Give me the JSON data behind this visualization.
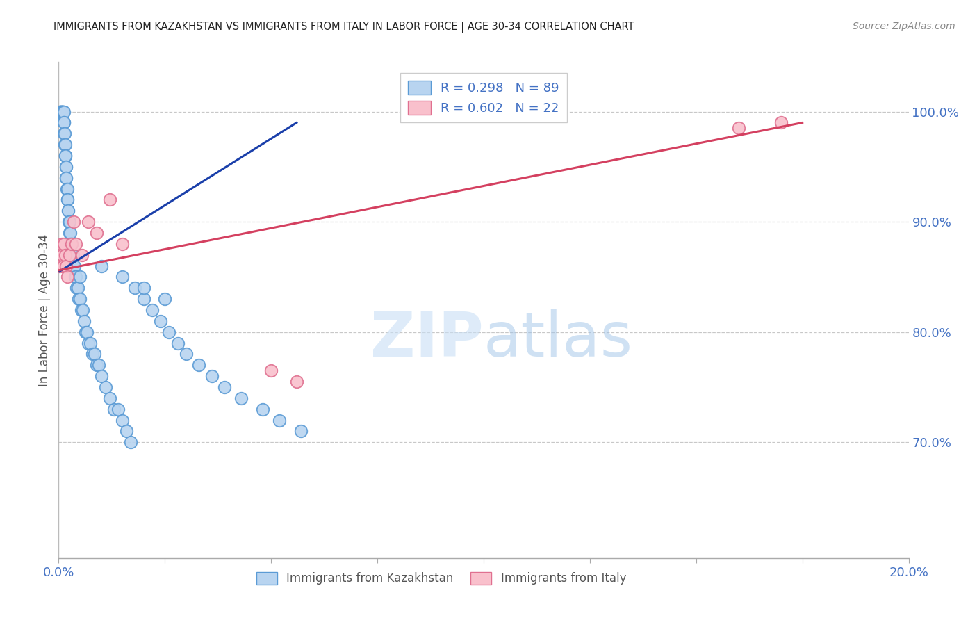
{
  "title": "IMMIGRANTS FROM KAZAKHSTAN VS IMMIGRANTS FROM ITALY IN LABOR FORCE | AGE 30-34 CORRELATION CHART",
  "source": "Source: ZipAtlas.com",
  "ylabel": "In Labor Force | Age 30-34",
  "title_color": "#222222",
  "source_color": "#888888",
  "ylabel_color": "#555555",
  "right_axis_color": "#4472c4",
  "grid_color": "#c8c8c8",
  "blue_scatter_color": "#b8d4f0",
  "blue_scatter_edge": "#5b9bd5",
  "pink_scatter_color": "#f9c0cc",
  "pink_scatter_edge": "#e07090",
  "blue_line_color": "#1a3faa",
  "pink_line_color": "#d44060",
  "blue_line_dash": [
    6,
    4
  ],
  "xlim": [
    0.0,
    0.2
  ],
  "ylim": [
    0.595,
    1.045
  ],
  "yticks_right": [
    0.7,
    0.8,
    0.9,
    1.0
  ],
  "ytick_labels_right": [
    "70.0%",
    "80.0%",
    "90.0%",
    "100.0%"
  ],
  "xticks": [
    0.0,
    0.025,
    0.05,
    0.075,
    0.1,
    0.125,
    0.15,
    0.175,
    0.2
  ],
  "xtick_labels_show": [
    "0.0%",
    "",
    "",
    "",
    "",
    "",
    "",
    "",
    "20.0%"
  ],
  "legend_r_entries": [
    {
      "label": "R = 0.298   N = 89",
      "color": "#b8d4f0",
      "edge": "#5b9bd5"
    },
    {
      "label": "R = 0.602   N = 22",
      "color": "#f9c0cc",
      "edge": "#e07090"
    }
  ],
  "legend_bottom": [
    "Immigrants from Kazakhstan",
    "Immigrants from Italy"
  ],
  "watermark_zip": "ZIP",
  "watermark_atlas": "atlas",
  "figsize": [
    14.06,
    8.92
  ],
  "dpi": 100,
  "kazakhstan_x": [
    0.0002,
    0.0003,
    0.0004,
    0.0005,
    0.0005,
    0.0006,
    0.0007,
    0.0007,
    0.0008,
    0.0008,
    0.0009,
    0.001,
    0.001,
    0.0011,
    0.0011,
    0.0012,
    0.0012,
    0.0013,
    0.0013,
    0.0014,
    0.0014,
    0.0015,
    0.0015,
    0.0016,
    0.0016,
    0.0017,
    0.0017,
    0.0018,
    0.0018,
    0.0019,
    0.002,
    0.002,
    0.0021,
    0.0022,
    0.0023,
    0.0024,
    0.0025,
    0.0026,
    0.0027,
    0.0028,
    0.003,
    0.0032,
    0.0033,
    0.0035,
    0.0037,
    0.0038,
    0.004,
    0.0042,
    0.0045,
    0.0047,
    0.005,
    0.0053,
    0.0056,
    0.006,
    0.0063,
    0.0067,
    0.007,
    0.0075,
    0.008,
    0.0085,
    0.009,
    0.0095,
    0.01,
    0.011,
    0.012,
    0.013,
    0.014,
    0.015,
    0.016,
    0.017,
    0.018,
    0.02,
    0.022,
    0.024,
    0.026,
    0.028,
    0.03,
    0.033,
    0.036,
    0.039,
    0.043,
    0.048,
    0.052,
    0.057,
    0.01,
    0.015,
    0.02,
    0.025,
    0.005
  ],
  "kazakhstan_y": [
    1.0,
    1.0,
    1.0,
    1.0,
    1.0,
    1.0,
    1.0,
    1.0,
    1.0,
    1.0,
    1.0,
    1.0,
    1.0,
    1.0,
    1.0,
    1.0,
    0.99,
    0.99,
    0.98,
    0.98,
    0.97,
    0.97,
    0.96,
    0.96,
    0.96,
    0.95,
    0.95,
    0.94,
    0.94,
    0.93,
    0.93,
    0.92,
    0.92,
    0.91,
    0.91,
    0.9,
    0.9,
    0.89,
    0.89,
    0.88,
    0.88,
    0.87,
    0.87,
    0.86,
    0.86,
    0.85,
    0.85,
    0.84,
    0.84,
    0.83,
    0.83,
    0.82,
    0.82,
    0.81,
    0.8,
    0.8,
    0.79,
    0.79,
    0.78,
    0.78,
    0.77,
    0.77,
    0.76,
    0.75,
    0.74,
    0.73,
    0.73,
    0.72,
    0.71,
    0.7,
    0.84,
    0.83,
    0.82,
    0.81,
    0.8,
    0.79,
    0.78,
    0.77,
    0.76,
    0.75,
    0.74,
    0.73,
    0.72,
    0.71,
    0.86,
    0.85,
    0.84,
    0.83,
    0.85
  ],
  "italy_x": [
    0.0003,
    0.0005,
    0.0007,
    0.0009,
    0.0011,
    0.0013,
    0.0015,
    0.0018,
    0.002,
    0.0025,
    0.003,
    0.0035,
    0.004,
    0.0055,
    0.007,
    0.009,
    0.012,
    0.015,
    0.05,
    0.056,
    0.16,
    0.17
  ],
  "italy_y": [
    0.86,
    0.87,
    0.88,
    0.87,
    0.86,
    0.88,
    0.87,
    0.86,
    0.85,
    0.87,
    0.88,
    0.9,
    0.88,
    0.87,
    0.9,
    0.89,
    0.92,
    0.88,
    0.765,
    0.755,
    0.985,
    0.99
  ]
}
